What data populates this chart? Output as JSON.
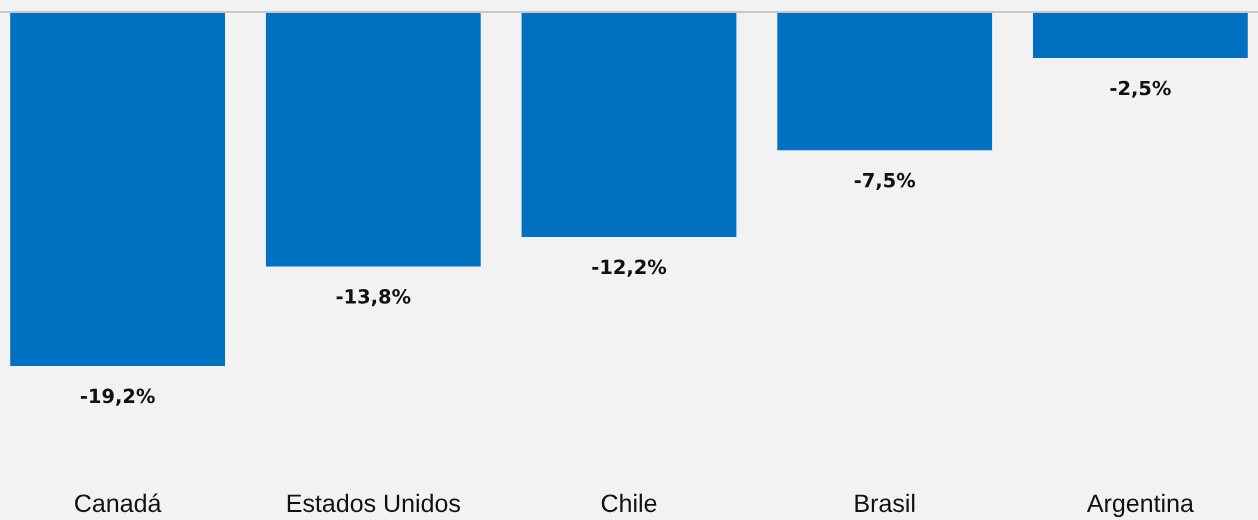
{
  "chart_data": {
    "type": "bar",
    "categories": [
      "Canadá",
      "Estados Unidos",
      "Chile",
      "Brasil",
      "Argentina"
    ],
    "values": [
      -19.2,
      -13.8,
      -12.2,
      -7.5,
      -2.5
    ],
    "value_labels": [
      "-19,2%",
      "-13,8%",
      "-12,2%",
      "-7,5%",
      "-2,5%"
    ],
    "color": "#0070c0",
    "tick_labels": "x",
    "grid": false,
    "legend": false
  }
}
